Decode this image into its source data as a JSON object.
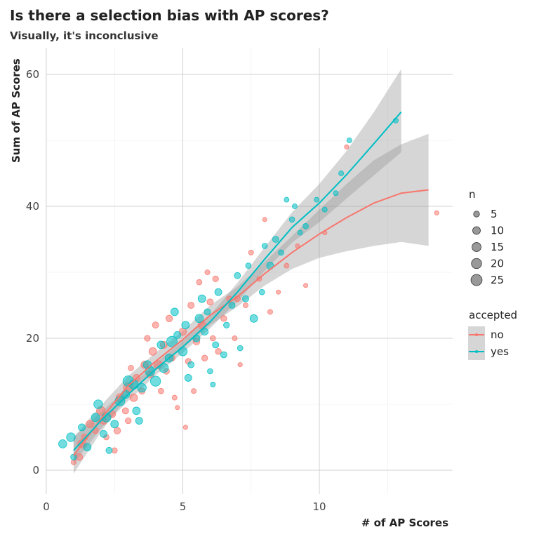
{
  "chart_data": {
    "type": "scatter",
    "title": "Is there a selection bias with AP scores?",
    "subtitle": "Visually, it's inconclusive",
    "xlabel": "# of AP Scores",
    "ylabel": "Sum of AP Scores",
    "xlim": [
      0,
      14.5
    ],
    "ylim": [
      -3.5,
      64
    ],
    "xticks": [
      0,
      5,
      10
    ],
    "yticks": [
      0,
      20,
      40,
      60
    ],
    "grid": true,
    "legend_size": {
      "title": "n",
      "items": [
        5,
        10,
        15,
        20,
        25
      ]
    },
    "legend_color": {
      "title": "accepted",
      "items": [
        {
          "label": "no",
          "color": "#f8766d"
        },
        {
          "label": "yes",
          "color": "#00bfc4"
        }
      ]
    },
    "series": [
      {
        "name": "no",
        "color": "#f8766d",
        "points": [
          [
            1.0,
            1.2,
            3
          ],
          [
            1.2,
            2.0,
            8
          ],
          [
            1.3,
            4.0,
            12
          ],
          [
            1.4,
            5.0,
            6
          ],
          [
            1.6,
            7.0,
            10
          ],
          [
            1.8,
            6.0,
            5
          ],
          [
            2.0,
            9.0,
            14
          ],
          [
            2.1,
            7.5,
            8
          ],
          [
            2.2,
            5.0,
            4
          ],
          [
            2.4,
            8.5,
            9
          ],
          [
            2.5,
            3.0,
            4
          ],
          [
            2.6,
            6.0,
            7
          ],
          [
            2.7,
            11.0,
            12
          ],
          [
            2.9,
            9.0,
            6
          ],
          [
            3.0,
            12.5,
            18
          ],
          [
            3.0,
            7.5,
            5
          ],
          [
            3.1,
            15.5,
            4
          ],
          [
            3.2,
            11.0,
            10
          ],
          [
            3.3,
            14.0,
            8
          ],
          [
            3.5,
            12.0,
            6
          ],
          [
            3.6,
            16.0,
            9
          ],
          [
            3.7,
            20.0,
            5
          ],
          [
            3.8,
            14.5,
            7
          ],
          [
            3.9,
            18.0,
            10
          ],
          [
            4.0,
            22.0,
            6
          ],
          [
            4.1,
            16.0,
            12
          ],
          [
            4.2,
            12.0,
            4
          ],
          [
            4.3,
            19.0,
            8
          ],
          [
            4.4,
            15.0,
            5
          ],
          [
            4.5,
            23.0,
            7
          ],
          [
            4.6,
            17.0,
            6
          ],
          [
            4.7,
            11.0,
            3
          ],
          [
            4.8,
            9.5,
            2
          ],
          [
            5.0,
            21.0,
            9
          ],
          [
            5.1,
            6.5,
            2
          ],
          [
            5.2,
            16.5,
            5
          ],
          [
            5.3,
            25.0,
            6
          ],
          [
            5.4,
            12.0,
            3
          ],
          [
            5.5,
            19.5,
            7
          ],
          [
            5.6,
            28.5,
            4
          ],
          [
            5.7,
            22.0,
            10
          ],
          [
            5.8,
            17.0,
            5
          ],
          [
            5.9,
            30.0,
            3
          ],
          [
            6.0,
            25.5,
            6
          ],
          [
            6.1,
            20.0,
            4
          ],
          [
            6.2,
            29.0,
            5
          ],
          [
            6.3,
            18.0,
            5
          ],
          [
            6.5,
            23.0,
            5
          ],
          [
            6.7,
            26.0,
            4
          ],
          [
            6.9,
            20.0,
            3
          ],
          [
            7.0,
            26.0,
            5
          ],
          [
            7.1,
            16.0,
            2
          ],
          [
            7.3,
            25.0,
            3
          ],
          [
            7.5,
            33.0,
            3
          ],
          [
            7.8,
            29.0,
            3
          ],
          [
            8.0,
            38.0,
            2
          ],
          [
            8.2,
            24.0,
            3
          ],
          [
            8.5,
            27.0,
            2
          ],
          [
            8.8,
            31.0,
            3
          ],
          [
            9.2,
            34.0,
            2
          ],
          [
            9.5,
            28.0,
            2
          ],
          [
            10.2,
            36.0,
            2
          ],
          [
            11.0,
            49.0,
            2
          ],
          [
            14.3,
            39.0,
            2
          ]
        ],
        "smooth": [
          [
            1,
            2.2
          ],
          [
            2,
            7.8
          ],
          [
            3,
            12.8
          ],
          [
            4,
            16.5
          ],
          [
            5,
            19.8
          ],
          [
            6,
            23.5
          ],
          [
            7,
            26.3
          ],
          [
            8,
            29.8
          ],
          [
            9,
            33.0
          ],
          [
            10,
            35.8
          ],
          [
            11,
            38.3
          ],
          [
            12,
            40.5
          ],
          [
            13,
            42.0
          ],
          [
            14,
            42.5
          ]
        ],
        "band": [
          [
            1,
            -0.5,
            5.0
          ],
          [
            2,
            5.8,
            9.8
          ],
          [
            3,
            11.3,
            14.3
          ],
          [
            4,
            15.2,
            17.8
          ],
          [
            5,
            18.5,
            21.1
          ],
          [
            6,
            22.0,
            25.0
          ],
          [
            7,
            24.8,
            27.8
          ],
          [
            8,
            28.0,
            31.6
          ],
          [
            9,
            30.5,
            35.5
          ],
          [
            10,
            32.2,
            39.5
          ],
          [
            11,
            33.2,
            43.4
          ],
          [
            12,
            34.0,
            47.0
          ],
          [
            13,
            34.6,
            49.4
          ],
          [
            14,
            34.0,
            51.0
          ]
        ]
      },
      {
        "name": "yes",
        "color": "#00bfc4",
        "points": [
          [
            0.6,
            4.0,
            12
          ],
          [
            0.9,
            5.0,
            14
          ],
          [
            1.0,
            2.0,
            5
          ],
          [
            1.3,
            6.5,
            8
          ],
          [
            1.5,
            3.5,
            10
          ],
          [
            1.8,
            8.0,
            12
          ],
          [
            1.9,
            10.0,
            14
          ],
          [
            2.1,
            5.5,
            8
          ],
          [
            2.2,
            8.0,
            16
          ],
          [
            2.3,
            3.0,
            6
          ],
          [
            2.5,
            7.0,
            10
          ],
          [
            2.7,
            10.5,
            18
          ],
          [
            2.9,
            11.5,
            12
          ],
          [
            3.0,
            13.5,
            22
          ],
          [
            3.2,
            13.0,
            16
          ],
          [
            3.3,
            9.0,
            10
          ],
          [
            3.4,
            7.5,
            8
          ],
          [
            3.5,
            12.5,
            14
          ],
          [
            3.7,
            16.0,
            12
          ],
          [
            3.8,
            15.0,
            18
          ],
          [
            4.0,
            13.5,
            20
          ],
          [
            4.2,
            19.0,
            10
          ],
          [
            4.3,
            15.5,
            16
          ],
          [
            4.5,
            17.0,
            12
          ],
          [
            4.6,
            19.5,
            22
          ],
          [
            4.7,
            24.0,
            10
          ],
          [
            4.8,
            20.5,
            8
          ],
          [
            5.0,
            18.0,
            14
          ],
          [
            5.1,
            22.0,
            10
          ],
          [
            5.2,
            14.0,
            8
          ],
          [
            5.3,
            16.0,
            6
          ],
          [
            5.5,
            20.0,
            8
          ],
          [
            5.6,
            23.0,
            12
          ],
          [
            5.7,
            26.0,
            10
          ],
          [
            5.8,
            21.0,
            8
          ],
          [
            5.9,
            24.0,
            6
          ],
          [
            6.0,
            15.0,
            4
          ],
          [
            6.1,
            13.0,
            3
          ],
          [
            6.2,
            19.0,
            6
          ],
          [
            6.3,
            27.0,
            8
          ],
          [
            6.5,
            17.5,
            6
          ],
          [
            6.6,
            22.0,
            5
          ],
          [
            6.8,
            25.0,
            6
          ],
          [
            7.0,
            29.5,
            6
          ],
          [
            7.1,
            18.5,
            4
          ],
          [
            7.3,
            26.0,
            6
          ],
          [
            7.4,
            31.0,
            4
          ],
          [
            7.6,
            23.0,
            10
          ],
          [
            7.9,
            27.0,
            4
          ],
          [
            8.0,
            34.0,
            4
          ],
          [
            8.2,
            31.0,
            8
          ],
          [
            8.4,
            35.0,
            6
          ],
          [
            8.6,
            33.0,
            4
          ],
          [
            8.8,
            41.0,
            3
          ],
          [
            9.0,
            38.0,
            4
          ],
          [
            9.1,
            40.0,
            3
          ],
          [
            9.3,
            36.0,
            3
          ],
          [
            9.5,
            37.0,
            4
          ],
          [
            9.9,
            41.0,
            3
          ],
          [
            10.2,
            39.5,
            3
          ],
          [
            10.6,
            42.0,
            3
          ],
          [
            10.8,
            45.0,
            3
          ],
          [
            11.1,
            50.0,
            3
          ],
          [
            12.8,
            53.0,
            3
          ]
        ],
        "smooth": [
          [
            1,
            3.0
          ],
          [
            2,
            7.5
          ],
          [
            3,
            11.5
          ],
          [
            4,
            15.3
          ],
          [
            5,
            18.7
          ],
          [
            6,
            22.5
          ],
          [
            7,
            27.0
          ],
          [
            8,
            32.0
          ],
          [
            9,
            36.8
          ],
          [
            10,
            40.5
          ],
          [
            11,
            44.8
          ],
          [
            12,
            49.5
          ],
          [
            13,
            54.3
          ]
        ],
        "band": [
          [
            1,
            1.0,
            5.0
          ],
          [
            2,
            6.3,
            8.8
          ],
          [
            3,
            10.5,
            12.5
          ],
          [
            4,
            14.4,
            16.2
          ],
          [
            5,
            17.8,
            19.6
          ],
          [
            6,
            21.5,
            23.5
          ],
          [
            7,
            25.6,
            28.4
          ],
          [
            8,
            30.2,
            33.8
          ],
          [
            9,
            34.5,
            39.1
          ],
          [
            10,
            37.6,
            43.4
          ],
          [
            11,
            41.2,
            48.4
          ],
          [
            12,
            44.7,
            54.3
          ],
          [
            13,
            48.2,
            60.8
          ]
        ]
      }
    ]
  }
}
